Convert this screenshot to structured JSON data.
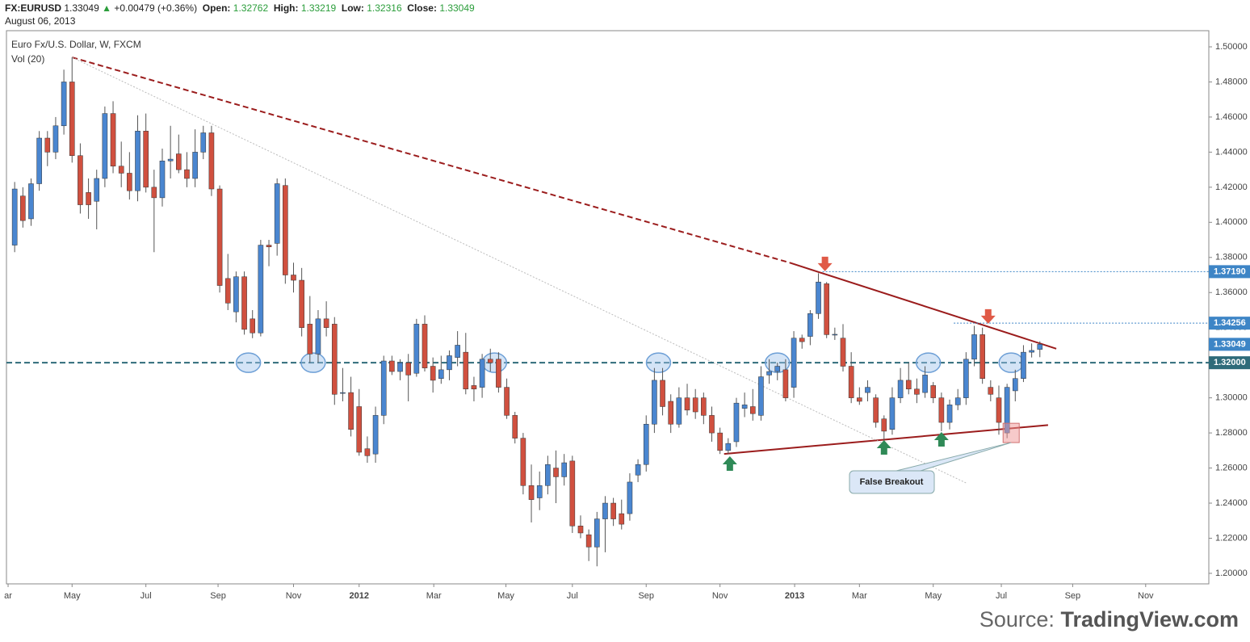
{
  "header": {
    "symbol": "FX:EURUSD",
    "last": "1.33049",
    "arrow": "▲",
    "change": "+0.00479 (+0.36%)",
    "open_label": "Open:",
    "open": "1.32762",
    "high_label": "High:",
    "high": "1.33219",
    "low_label": "Low:",
    "low": "1.32316",
    "close_label": "Close:",
    "close": "1.33049",
    "date": "August 06, 2013"
  },
  "chart_data": {
    "type": "candlestick",
    "title": "Euro Fx/U.S. Dollar, W, FXCM",
    "subtitle": "Vol (20)",
    "up_color": "#4a86d0",
    "down_color": "#d0503f",
    "ylim": [
      1.194,
      1.5092
    ],
    "xlim": [
      -1,
      145.6
    ],
    "yticks": [
      {
        "value": 1.2,
        "label": "1.20000"
      },
      {
        "value": 1.22,
        "label": "1.22000"
      },
      {
        "value": 1.24,
        "label": "1.24000"
      },
      {
        "value": 1.26,
        "label": "1.26000"
      },
      {
        "value": 1.28,
        "label": "1.28000"
      },
      {
        "value": 1.3,
        "label": "1.30000"
      },
      {
        "value": 1.32,
        "label": "1.32000"
      },
      {
        "value": 1.34,
        "label": "1.34000"
      },
      {
        "value": 1.36,
        "label": "1.36000"
      },
      {
        "value": 1.38,
        "label": "1.38000"
      },
      {
        "value": 1.4,
        "label": "1.40000"
      },
      {
        "value": 1.42,
        "label": "1.42000"
      },
      {
        "value": 1.44,
        "label": "1.44000"
      },
      {
        "value": 1.46,
        "label": "1.46000"
      },
      {
        "value": 1.48,
        "label": "1.48000"
      },
      {
        "value": 1.5,
        "label": "1.50000"
      }
    ],
    "xticks": [
      {
        "value": -0.8,
        "label": "ar"
      },
      {
        "value": 7,
        "label": "May"
      },
      {
        "value": 16,
        "label": "Jul"
      },
      {
        "value": 24.8,
        "label": "Sep"
      },
      {
        "value": 34,
        "label": "Nov"
      },
      {
        "value": 42,
        "label": "2012"
      },
      {
        "value": 51.1,
        "label": "Mar"
      },
      {
        "value": 59.9,
        "label": "May"
      },
      {
        "value": 68,
        "label": "Jul"
      },
      {
        "value": 77,
        "label": "Sep"
      },
      {
        "value": 86,
        "label": "Nov"
      },
      {
        "value": 95.1,
        "label": "2013"
      },
      {
        "value": 103,
        "label": "Mar"
      },
      {
        "value": 112,
        "label": "May"
      },
      {
        "value": 120.3,
        "label": "Jul"
      },
      {
        "value": 129,
        "label": "Sep"
      },
      {
        "value": 137.9,
        "label": "Nov"
      }
    ],
    "ohlc": [
      [
        1.387,
        1.423,
        1.383,
        1.419
      ],
      [
        1.415,
        1.42,
        1.397,
        1.401
      ],
      [
        1.402,
        1.425,
        1.398,
        1.422
      ],
      [
        1.422,
        1.452,
        1.418,
        1.448
      ],
      [
        1.448,
        1.452,
        1.432,
        1.44
      ],
      [
        1.44,
        1.46,
        1.436,
        1.455
      ],
      [
        1.455,
        1.487,
        1.45,
        1.48
      ],
      [
        1.48,
        1.494,
        1.434,
        1.438
      ],
      [
        1.438,
        1.445,
        1.405,
        1.41
      ],
      [
        1.417,
        1.425,
        1.402,
        1.41
      ],
      [
        1.412,
        1.43,
        1.396,
        1.425
      ],
      [
        1.425,
        1.466,
        1.42,
        1.462
      ],
      [
        1.462,
        1.469,
        1.428,
        1.432
      ],
      [
        1.432,
        1.446,
        1.42,
        1.428
      ],
      [
        1.428,
        1.44,
        1.413,
        1.418
      ],
      [
        1.418,
        1.461,
        1.412,
        1.452
      ],
      [
        1.452,
        1.462,
        1.417,
        1.42
      ],
      [
        1.42,
        1.43,
        1.383,
        1.414
      ],
      [
        1.414,
        1.442,
        1.409,
        1.435
      ],
      [
        1.435,
        1.455,
        1.425,
        1.436
      ],
      [
        1.439,
        1.45,
        1.428,
        1.43
      ],
      [
        1.43,
        1.44,
        1.42,
        1.425
      ],
      [
        1.425,
        1.453,
        1.42,
        1.44
      ],
      [
        1.44,
        1.455,
        1.436,
        1.451
      ],
      [
        1.451,
        1.455,
        1.415,
        1.419
      ],
      [
        1.419,
        1.421,
        1.36,
        1.364
      ],
      [
        1.368,
        1.382,
        1.35,
        1.354
      ],
      [
        1.349,
        1.372,
        1.343,
        1.369
      ],
      [
        1.369,
        1.372,
        1.336,
        1.339
      ],
      [
        1.345,
        1.35,
        1.334,
        1.337
      ],
      [
        1.337,
        1.39,
        1.335,
        1.387
      ],
      [
        1.387,
        1.39,
        1.375,
        1.386
      ],
      [
        1.388,
        1.425,
        1.381,
        1.422
      ],
      [
        1.421,
        1.425,
        1.365,
        1.37
      ],
      [
        1.37,
        1.377,
        1.36,
        1.367
      ],
      [
        1.367,
        1.374,
        1.335,
        1.34
      ],
      [
        1.342,
        1.358,
        1.32,
        1.325
      ],
      [
        1.325,
        1.35,
        1.32,
        1.345
      ],
      [
        1.345,
        1.355,
        1.335,
        1.34
      ],
      [
        1.342,
        1.346,
        1.296,
        1.302
      ],
      [
        1.303,
        1.317,
        1.298,
        1.303
      ],
      [
        1.303,
        1.312,
        1.278,
        1.282
      ],
      [
        1.295,
        1.305,
        1.267,
        1.269
      ],
      [
        1.271,
        1.278,
        1.263,
        1.267
      ],
      [
        1.268,
        1.295,
        1.263,
        1.29
      ],
      [
        1.29,
        1.324,
        1.285,
        1.321
      ],
      [
        1.321,
        1.324,
        1.313,
        1.315
      ],
      [
        1.315,
        1.322,
        1.31,
        1.32
      ],
      [
        1.32,
        1.325,
        1.298,
        1.313
      ],
      [
        1.314,
        1.345,
        1.312,
        1.342
      ],
      [
        1.342,
        1.347,
        1.315,
        1.317
      ],
      [
        1.318,
        1.323,
        1.303,
        1.31
      ],
      [
        1.311,
        1.324,
        1.308,
        1.316
      ],
      [
        1.316,
        1.327,
        1.31,
        1.324
      ],
      [
        1.323,
        1.338,
        1.318,
        1.33
      ],
      [
        1.326,
        1.337,
        1.302,
        1.305
      ],
      [
        1.307,
        1.312,
        1.298,
        1.305
      ],
      [
        1.306,
        1.325,
        1.3,
        1.322
      ],
      [
        1.322,
        1.328,
        1.315,
        1.32
      ],
      [
        1.322,
        1.326,
        1.303,
        1.306
      ],
      [
        1.306,
        1.311,
        1.288,
        1.29
      ],
      [
        1.29,
        1.292,
        1.274,
        1.277
      ],
      [
        1.277,
        1.28,
        1.245,
        1.25
      ],
      [
        1.25,
        1.262,
        1.229,
        1.242
      ],
      [
        1.243,
        1.258,
        1.236,
        1.25
      ],
      [
        1.25,
        1.267,
        1.245,
        1.262
      ],
      [
        1.26,
        1.27,
        1.24,
        1.255
      ],
      [
        1.255,
        1.268,
        1.25,
        1.263
      ],
      [
        1.264,
        1.267,
        1.223,
        1.227
      ],
      [
        1.227,
        1.233,
        1.22,
        1.223
      ],
      [
        1.222,
        1.225,
        1.207,
        1.215
      ],
      [
        1.215,
        1.235,
        1.204,
        1.231
      ],
      [
        1.231,
        1.244,
        1.212,
        1.24
      ],
      [
        1.24,
        1.243,
        1.227,
        1.231
      ],
      [
        1.234,
        1.242,
        1.225,
        1.228
      ],
      [
        1.234,
        1.257,
        1.23,
        1.252
      ],
      [
        1.256,
        1.265,
        1.252,
        1.262
      ],
      [
        1.262,
        1.29,
        1.258,
        1.285
      ],
      [
        1.285,
        1.317,
        1.28,
        1.31
      ],
      [
        1.31,
        1.317,
        1.29,
        1.295
      ],
      [
        1.298,
        1.302,
        1.28,
        1.285
      ],
      [
        1.285,
        1.306,
        1.283,
        1.3
      ],
      [
        1.3,
        1.308,
        1.29,
        1.293
      ],
      [
        1.3,
        1.305,
        1.288,
        1.292
      ],
      [
        1.3,
        1.303,
        1.285,
        1.29
      ],
      [
        1.29,
        1.295,
        1.275,
        1.28
      ],
      [
        1.28,
        1.283,
        1.268,
        1.27
      ],
      [
        1.27,
        1.277,
        1.268,
        1.274
      ],
      [
        1.275,
        1.3,
        1.272,
        1.297
      ],
      [
        1.294,
        1.303,
        1.289,
        1.296
      ],
      [
        1.295,
        1.305,
        1.287,
        1.291
      ],
      [
        1.29,
        1.318,
        1.287,
        1.312
      ],
      [
        1.313,
        1.322,
        1.308,
        1.315
      ],
      [
        1.315,
        1.32,
        1.31,
        1.318
      ],
      [
        1.316,
        1.322,
        1.298,
        1.3
      ],
      [
        1.306,
        1.338,
        1.3,
        1.334
      ],
      [
        1.334,
        1.336,
        1.328,
        1.332
      ],
      [
        1.335,
        1.35,
        1.33,
        1.348
      ],
      [
        1.348,
        1.371,
        1.345,
        1.366
      ],
      [
        1.365,
        1.366,
        1.334,
        1.336
      ],
      [
        1.336,
        1.34,
        1.333,
        1.3362
      ],
      [
        1.334,
        1.342,
        1.315,
        1.318
      ],
      [
        1.318,
        1.326,
        1.297,
        1.3
      ],
      [
        1.3,
        1.306,
        1.296,
        1.298
      ],
      [
        1.303,
        1.31,
        1.298,
        1.306
      ],
      [
        1.3,
        1.302,
        1.283,
        1.286
      ],
      [
        1.288,
        1.29,
        1.276,
        1.281
      ],
      [
        1.282,
        1.306,
        1.279,
        1.3
      ],
      [
        1.3,
        1.317,
        1.297,
        1.31
      ],
      [
        1.31,
        1.32,
        1.302,
        1.305
      ],
      [
        1.305,
        1.311,
        1.297,
        1.302
      ],
      [
        1.303,
        1.318,
        1.3,
        1.313
      ],
      [
        1.307,
        1.309,
        1.297,
        1.3
      ],
      [
        1.3,
        1.303,
        1.281,
        1.286
      ],
      [
        1.286,
        1.299,
        1.282,
        1.296
      ],
      [
        1.296,
        1.305,
        1.293,
        1.3
      ],
      [
        1.3,
        1.326,
        1.296,
        1.322
      ],
      [
        1.322,
        1.341,
        1.318,
        1.336
      ],
      [
        1.336,
        1.34,
        1.308,
        1.311
      ],
      [
        1.306,
        1.31,
        1.298,
        1.302
      ],
      [
        1.3,
        1.307,
        1.279,
        1.286
      ],
      [
        1.28,
        1.308,
        1.277,
        1.306
      ],
      [
        1.304,
        1.316,
        1.298,
        1.311
      ],
      [
        1.311,
        1.33,
        1.309,
        1.326
      ],
      [
        1.326,
        1.331,
        1.323,
        1.327
      ],
      [
        1.32762,
        1.33219,
        1.32316,
        1.33049
      ]
    ],
    "levels": [
      {
        "value": 1.3719,
        "label": "1.37190",
        "from": 98.5,
        "color": "#3d85c6",
        "style": "dotted"
      },
      {
        "value": 1.34256,
        "label": "1.34256",
        "from": 114.5,
        "color": "#3d85c6",
        "style": "dotted"
      },
      {
        "value": 1.33049,
        "label": "1.33049",
        "from": 125,
        "color": "#3d85c6",
        "style": "none"
      },
      {
        "value": 1.32,
        "label": "1.32000",
        "from": -1,
        "color": "#2e6b7a",
        "style": "dashed"
      }
    ],
    "trendlines": [
      {
        "points": [
          [
            7,
            1.494
          ],
          [
            94.5,
            1.377
          ]
        ],
        "color": "#9b1c1c",
        "style": "dashed"
      },
      {
        "points": [
          [
            94.5,
            1.377
          ],
          [
            127,
            1.328
          ]
        ],
        "color": "#9b1c1c",
        "style": "solid"
      },
      {
        "points": [
          [
            86.5,
            1.268
          ],
          [
            126,
            1.2845
          ]
        ],
        "color": "#9b1c1c",
        "style": "solid"
      },
      {
        "points": [
          [
            7,
            1.494
          ],
          [
            116,
            1.2515
          ]
        ],
        "color": "#bbbbbb",
        "style": "dotted"
      }
    ],
    "ellipses": [
      [
        28.5,
        1.32
      ],
      [
        36.4,
        1.32
      ],
      [
        58.5,
        1.32
      ],
      [
        78.5,
        1.32
      ],
      [
        93,
        1.32
      ],
      [
        111.4,
        1.32
      ],
      [
        121.5,
        1.32
      ]
    ],
    "arrows_down": [
      [
        98.8,
        1.3804
      ],
      [
        118.7,
        1.3505
      ]
    ],
    "arrows_up": [
      [
        87.2,
        1.2667
      ],
      [
        106,
        1.2759
      ],
      [
        113,
        1.2805
      ]
    ],
    "breakout_box": [
      121.5,
      1.2855,
      1.2745
    ],
    "callout": "False Breakout"
  },
  "source": {
    "prefix": "Source:",
    "name": "TradingView.com"
  }
}
